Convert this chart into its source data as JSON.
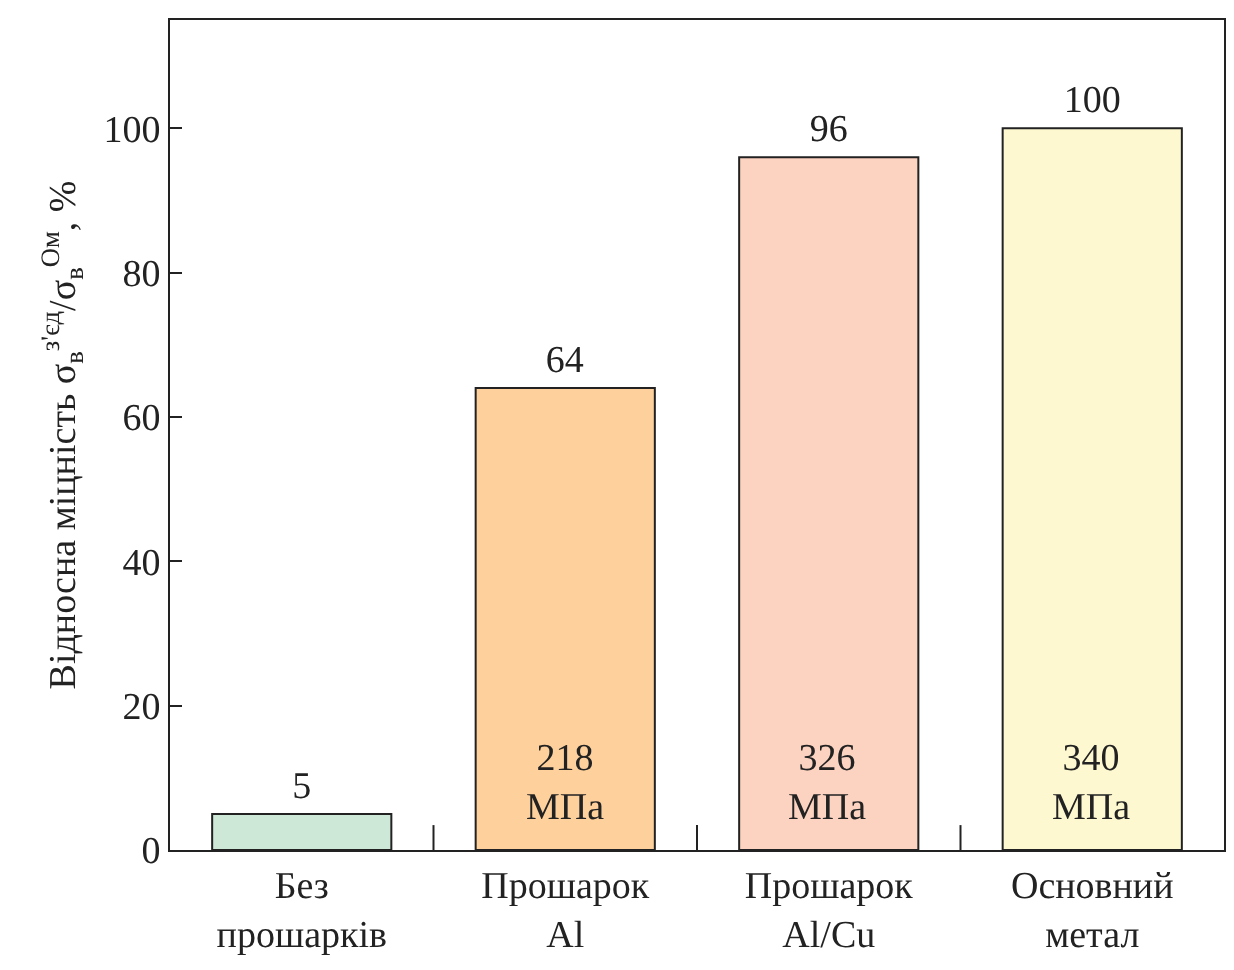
{
  "chart_data": {
    "type": "bar",
    "categories": [
      "Без\nпрошарків",
      "Прошарок\nAl",
      "Прошарок\nAl/Cu",
      "Основний\nметал"
    ],
    "values": [
      5,
      64,
      96,
      100
    ],
    "colors": [
      "#cde8d6",
      "#fdd09c",
      "#fcd2c0",
      "#fef8d0"
    ],
    "data_labels": true,
    "ylabel": "Відносна міцність σ$_{в}$$^{з'єд}$/σ$_{в}$$^{Ом}$, %",
    "ylim": [
      0,
      115
    ],
    "yticks": [
      0,
      20,
      40,
      60,
      80,
      100
    ],
    "annotations": [
      "218\nМПа",
      "326\nМПа",
      "340\nМПа"
    ]
  }
}
